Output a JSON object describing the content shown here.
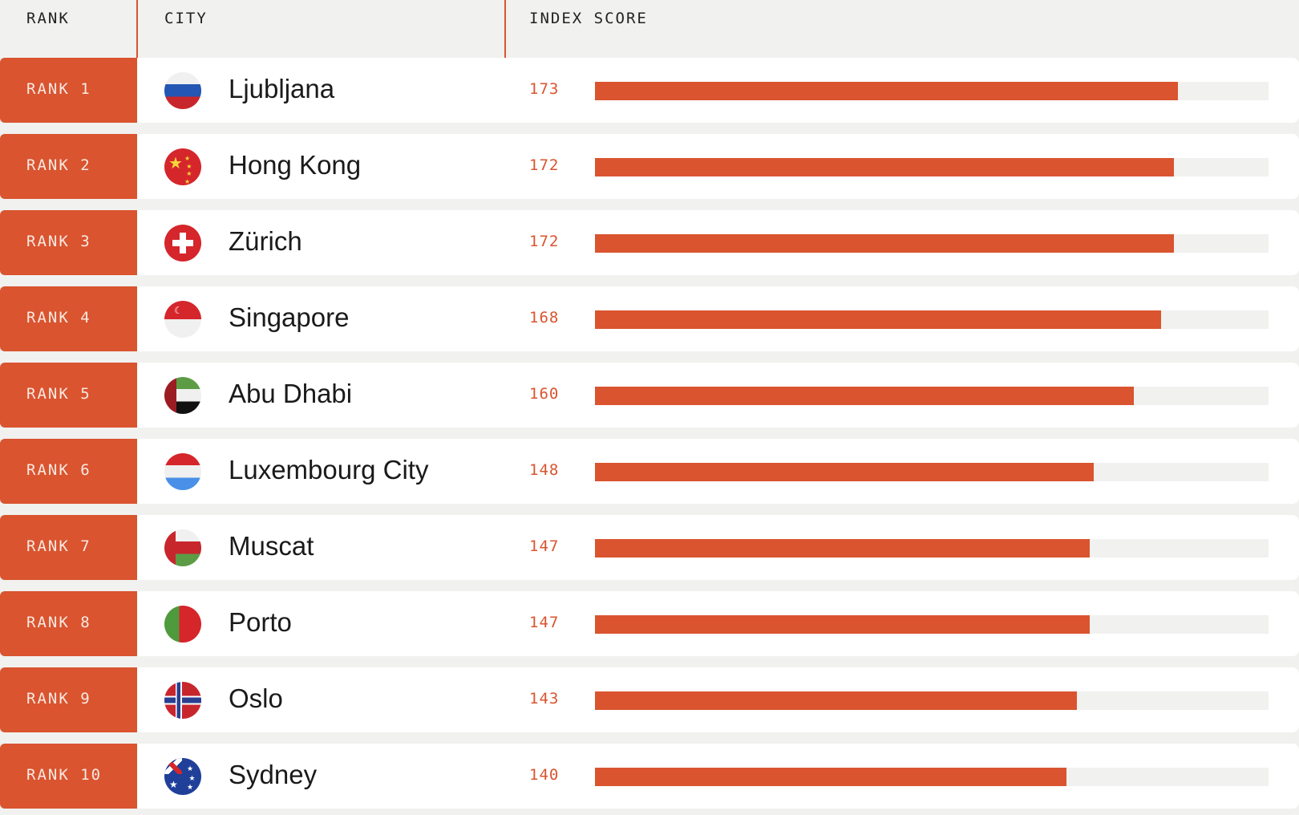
{
  "header": {
    "rank": "RANK",
    "city": "CITY",
    "score": "INDEX SCORE"
  },
  "colors": {
    "accent": "#d9542f",
    "track": "#f1f1ef"
  },
  "chart_data": {
    "type": "bar",
    "xlim": [
      0,
      200
    ],
    "rows": [
      {
        "rank_label": "RANK 1",
        "city": "Ljubljana",
        "flag": "slovenia-flag",
        "value": 173,
        "score": "173"
      },
      {
        "rank_label": "RANK 2",
        "city": "Hong Kong",
        "flag": "china-flag",
        "value": 172,
        "score": "172"
      },
      {
        "rank_label": "RANK 3",
        "city": "Zürich",
        "flag": "switzerland-flag",
        "value": 172,
        "score": "172"
      },
      {
        "rank_label": "RANK 4",
        "city": "Singapore",
        "flag": "singapore-flag",
        "value": 168,
        "score": "168"
      },
      {
        "rank_label": "RANK 5",
        "city": "Abu Dhabi",
        "flag": "uae-flag",
        "value": 160,
        "score": "160"
      },
      {
        "rank_label": "RANK 6",
        "city": "Luxembourg City",
        "flag": "luxembourg-flag",
        "value": 148,
        "score": "148"
      },
      {
        "rank_label": "RANK 7",
        "city": "Muscat",
        "flag": "oman-flag",
        "value": 147,
        "score": "147"
      },
      {
        "rank_label": "RANK 8",
        "city": "Porto",
        "flag": "portugal-flag",
        "value": 147,
        "score": "147"
      },
      {
        "rank_label": "RANK 9",
        "city": "Oslo",
        "flag": "norway-flag",
        "value": 143,
        "score": "143"
      },
      {
        "rank_label": "RANK 10",
        "city": "Sydney",
        "flag": "australia-flag",
        "value": 140,
        "score": "140"
      }
    ]
  }
}
